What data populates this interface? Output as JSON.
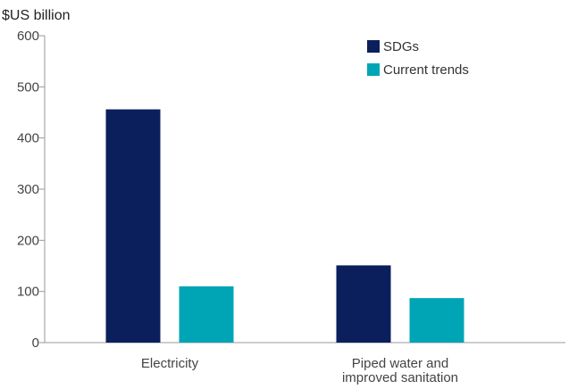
{
  "chart_data": {
    "type": "bar",
    "categories": [
      [
        "Electricity"
      ],
      [
        "Piped water and",
        "improved sanitation"
      ]
    ],
    "series": [
      {
        "name": "SDGs",
        "values": [
          456,
          151
        ],
        "color": "#0b1f5c"
      },
      {
        "name": "Current trends",
        "values": [
          110,
          87
        ],
        "color": "#00a5b5"
      }
    ],
    "ylabel": "$US billion",
    "yticks": [
      0,
      100,
      200,
      300,
      400,
      500,
      600
    ],
    "ylim": [
      0,
      600
    ],
    "legend_position": "top-right",
    "grid": false
  }
}
